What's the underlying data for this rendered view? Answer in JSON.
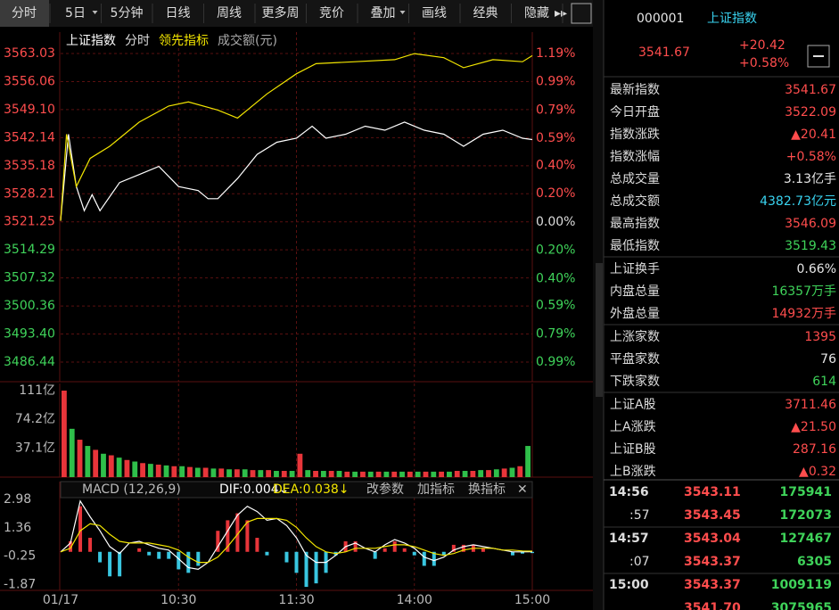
{
  "toolbar": {
    "tabs": [
      "分时",
      "5日",
      "5分钟",
      "日线",
      "周线",
      "更多周",
      "竞价",
      "叠加",
      "画线",
      "经典",
      "隐藏"
    ]
  },
  "quote": {
    "code": "000001",
    "name": "上证指数",
    "price": "3541.67",
    "change": "+20.42",
    "change_pct": "+0.58%"
  },
  "stats": [
    {
      "label": "最新指数",
      "value": "3541.67",
      "color": "#ff4d4d"
    },
    {
      "label": "今日开盘",
      "value": "3522.09",
      "color": "#ff4d4d"
    },
    {
      "label": "指数涨跌",
      "value": "▲20.41",
      "color": "#ff4d4d"
    },
    {
      "label": "指数涨幅",
      "value": "+0.58%",
      "color": "#ff4d4d"
    },
    {
      "label": "总成交量",
      "value": "3.13亿手",
      "color": "#e6e6e6"
    },
    {
      "label": "总成交额",
      "value": "4382.73亿元",
      "color": "#39d3f0"
    },
    {
      "label": "最高指数",
      "value": "3546.09",
      "color": "#ff4d4d"
    },
    {
      "label": "最低指数",
      "value": "3519.43",
      "color": "#3fd35a"
    },
    {
      "label": "上证换手",
      "value": "0.66%",
      "color": "#e6e6e6"
    },
    {
      "label": "内盘总量",
      "value": "16357万手",
      "color": "#3fd35a"
    },
    {
      "label": "外盘总量",
      "value": "14932万手",
      "color": "#ff4d4d"
    },
    {
      "label": "上涨家数",
      "value": "1395",
      "color": "#ff4d4d"
    },
    {
      "label": "平盘家数",
      "value": "76",
      "color": "#e6e6e6"
    },
    {
      "label": "下跌家数",
      "value": "614",
      "color": "#3fd35a"
    },
    {
      "label": "上证A股",
      "value": "3711.46",
      "color": "#ff4d4d"
    },
    {
      "label": "上A涨跌",
      "value": "▲21.50",
      "color": "#ff4d4d"
    },
    {
      "label": "上证B股",
      "value": "287.16",
      "color": "#ff4d4d"
    },
    {
      "label": "上B涨跌",
      "value": "▲0.32",
      "color": "#ff4d4d"
    }
  ],
  "trades": [
    {
      "time": "14:56",
      "price": "3543.11",
      "volume": "175941"
    },
    {
      "time": ":57",
      "price": "3543.45",
      "volume": "172073"
    },
    {
      "time": "14:57",
      "price": "3543.04",
      "volume": "127467"
    },
    {
      "time": ":07",
      "price": "3543.37",
      "volume": "6305"
    },
    {
      "time": "15:00",
      "price": "3543.37",
      "volume": "1009119"
    },
    {
      "price": "3541.70",
      "volume": "3075965"
    }
  ],
  "chart_data": [
    {
      "type": "line",
      "period": "分时",
      "ylim": [
        3486.44,
        3563.03
      ],
      "yticks": [
        3563.03,
        {
          "value": 3556.06,
          "label": "3556.06"
        },
        {
          "value": 3549.1,
          "label": "3549.10"
        },
        3542.14,
        3535.18,
        3528.21,
        3521.25,
        3514.29,
        3507.32,
        3500.36,
        {
          "value": 3493.4,
          "label": "3493.40"
        },
        3486.44
      ],
      "y2lim": [
        -0.99,
        1.19
      ],
      "y2ticks": [
        {
          "value": 1.19,
          "label": "1.19%"
        },
        {
          "value": 0.99,
          "label": "0.99%"
        },
        {
          "value": 0.79,
          "label": "0.79%"
        },
        {
          "value": 0.59,
          "label": "0.59%"
        },
        {
          "value": 0.4,
          "label": "0.40%"
        },
        {
          "value": 0.2,
          "label": "0.20%"
        },
        {
          "value": 0,
          "label": "0.00%"
        },
        {
          "value": -0.2,
          "label": "0.20%"
        },
        {
          "value": -0.4,
          "label": "0.40%"
        },
        {
          "value": -0.59,
          "label": "0.59%"
        },
        {
          "value": -0.79,
          "label": "0.79%"
        },
        {
          "value": -0.99,
          "label": "0.99%"
        }
      ],
      "series": [
        {
          "name": "上证指数",
          "color": "#ffffff",
          "x": [
            0,
            4,
            8,
            12,
            16,
            20,
            30,
            40,
            50,
            60,
            70,
            75,
            80,
            90,
            100,
            110,
            120,
            128,
            135,
            145,
            155,
            165,
            175,
            185,
            195,
            205,
            215,
            225,
            235,
            240
          ],
          "values": [
            3521.5,
            3543,
            3530,
            3524,
            3528,
            3524,
            3531,
            3533,
            3535,
            3530,
            3529,
            3527,
            3527,
            3532,
            3538,
            3541,
            3542,
            3545,
            3542,
            3543,
            3545,
            3544,
            3546,
            3544,
            3543,
            3540,
            3543,
            3544,
            3542,
            3541.67
          ]
        },
        {
          "name": "领先指标",
          "color": "#f2e500",
          "x": [
            0,
            3,
            8,
            15,
            25,
            40,
            55,
            65,
            80,
            90,
            105,
            120,
            130,
            150,
            170,
            180,
            195,
            205,
            220,
            235,
            240
          ],
          "values": [
            3521.5,
            3543,
            3530,
            3537,
            3540,
            3546,
            3550,
            3551,
            3549,
            3547,
            3553,
            3558,
            3560.5,
            3561,
            3561.5,
            3563,
            3562,
            3559.5,
            3561.5,
            3561,
            3562.5
          ]
        }
      ]
    },
    {
      "type": "bar",
      "title": "成交额(元)",
      "ylim": [
        0,
        111
      ],
      "yticks": [
        {
          "value": 111,
          "label": "111亿"
        },
        {
          "value": 74.2,
          "label": "74.2亿"
        },
        {
          "value": 37.1,
          "label": "37.1亿"
        }
      ],
      "up_color": "#e8353a",
      "down_color": "#2fbf4a",
      "values": [
        111,
        62,
        48,
        40,
        35,
        30,
        28,
        25,
        22,
        20,
        18,
        17,
        16,
        15,
        14,
        14,
        13,
        12,
        12,
        11,
        11,
        10,
        10,
        10,
        9,
        9,
        9,
        8,
        8,
        8,
        30,
        9,
        8,
        8,
        8,
        8,
        7,
        7,
        7,
        7,
        7,
        7,
        7,
        7,
        7,
        7,
        7,
        7,
        7,
        7,
        8,
        8,
        8,
        9,
        9,
        10,
        11,
        12,
        14,
        40
      ]
    },
    {
      "type": "macd",
      "indicator": "MACD (12,26,9)",
      "dif_label": "DIF:0.004↓",
      "dea_label": "DEA:0.038↓",
      "buttons": [
        "改参数",
        "加指标",
        "换指标"
      ],
      "xlim": [
        0,
        240
      ],
      "xticks": [
        {
          "value": 0,
          "label": "01/17"
        },
        {
          "value": 60,
          "label": "10:30"
        },
        {
          "value": 120,
          "label": "11:30"
        },
        {
          "value": 180,
          "label": "14:00"
        },
        {
          "value": 240,
          "label": "15:00"
        }
      ],
      "ylim": [
        -2.2,
        3.5
      ],
      "yticks": [
        2.98,
        1.36,
        -0.25,
        -1.87
      ],
      "x": [
        0,
        5,
        10,
        15,
        20,
        25,
        30,
        35,
        40,
        45,
        50,
        55,
        60,
        65,
        70,
        75,
        80,
        85,
        90,
        95,
        100,
        105,
        110,
        115,
        120,
        125,
        130,
        135,
        140,
        145,
        150,
        155,
        160,
        165,
        170,
        175,
        180,
        185,
        190,
        195,
        200,
        205,
        210,
        215,
        220,
        225,
        230,
        235,
        240
      ],
      "series": [
        {
          "name": "DIF",
          "color": "#ffffff",
          "values": [
            0,
            0.5,
            2.9,
            2.0,
            1.2,
            0.3,
            -0.1,
            0.5,
            0.6,
            0.4,
            0.2,
            0.1,
            -0.4,
            -0.9,
            -1.0,
            -0.6,
            0.3,
            1.2,
            2.1,
            2.6,
            2.3,
            1.8,
            1.9,
            1.5,
            0.8,
            -0.2,
            -0.6,
            -0.6,
            -0.2,
            0.3,
            0.5,
            0.2,
            0.0,
            0.4,
            0.7,
            0.5,
            0.2,
            -0.3,
            -0.5,
            -0.3,
            0.1,
            0.3,
            0.4,
            0.3,
            0.2,
            0.1,
            0.0,
            0.0,
            0.004
          ]
        },
        {
          "name": "DEA",
          "color": "#f2e500",
          "values": [
            0,
            0.2,
            1.2,
            1.6,
            1.5,
            1.0,
            0.6,
            0.5,
            0.5,
            0.5,
            0.4,
            0.3,
            0.1,
            -0.3,
            -0.6,
            -0.6,
            -0.3,
            0.3,
            1.0,
            1.7,
            1.9,
            1.9,
            1.9,
            1.8,
            1.4,
            0.8,
            0.3,
            0.0,
            -0.1,
            0.0,
            0.2,
            0.2,
            0.2,
            0.3,
            0.4,
            0.4,
            0.3,
            0.1,
            -0.1,
            -0.2,
            -0.1,
            0.1,
            0.2,
            0.2,
            0.2,
            0.1,
            0.1,
            0.05,
            0.038
          ]
        }
      ],
      "histogram": [
        0,
        0.6,
        2.6,
        0.8,
        -0.6,
        -1.4,
        -1.4,
        0,
        0.2,
        -0.2,
        -0.4,
        -0.4,
        -1.0,
        -1.2,
        -0.8,
        0,
        1.2,
        1.8,
        2.2,
        1.8,
        0.8,
        -0.2,
        0,
        -0.6,
        -1.2,
        -2.0,
        -1.8,
        -1.2,
        -0.2,
        0.6,
        0.6,
        0,
        -0.4,
        0.2,
        0.6,
        0.2,
        -0.2,
        -0.8,
        -0.8,
        -0.2,
        0.4,
        0.4,
        0.4,
        0.2,
        0,
        0,
        -0.2,
        -0.1,
        -0.07
      ]
    }
  ]
}
